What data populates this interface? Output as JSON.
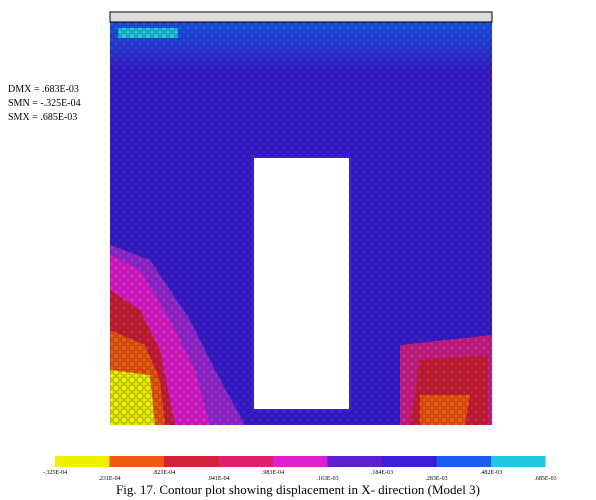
{
  "summary": [
    "DMX = .683E-03",
    "SMN = -.325E-04",
    "SMX = .685E-03"
  ],
  "legend": {
    "labels": [
      "-.325E-04",
      ".231E-04",
      ".823E-04",
      ".941E-04",
      ".983E-04",
      ".163E-03",
      ".184E-03",
      ".283E-03",
      ".482E-03",
      ".685E-03"
    ]
  },
  "caption": "Fig. 17. Contour plot showing displacement in X- direction (Model 3)"
}
